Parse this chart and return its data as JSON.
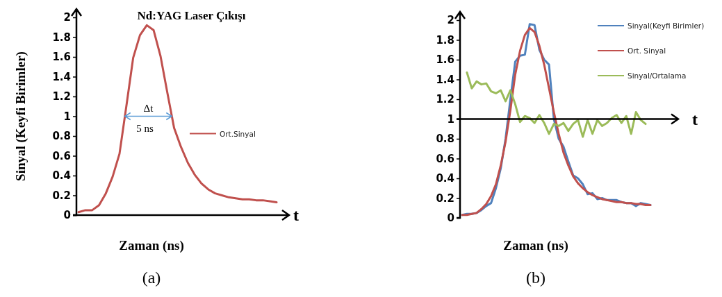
{
  "chart_data": [
    {
      "type": "line",
      "title": "Nd:YAG Laser Çıkışı",
      "subtitle": "(a)",
      "xlabel": "Zaman (ns)",
      "ylabel": "Sinyal (Keyfi Birimler)",
      "categories": [
        null,
        null,
        null,
        null,
        null,
        null,
        null,
        null,
        null,
        null,
        null,
        null,
        null,
        null,
        null,
        null,
        null,
        null,
        null,
        null,
        null,
        null,
        null,
        null,
        null,
        null,
        null,
        null,
        null,
        null
      ],
      "series": [
        {
          "name": "Ort.Sinyal",
          "color": "#c0504d",
          "values": [
            0.03,
            0.05,
            0.05,
            0.1,
            0.22,
            0.39,
            0.62,
            1.1,
            1.59,
            1.82,
            1.92,
            1.87,
            1.61,
            1.24,
            0.88,
            0.69,
            0.53,
            0.41,
            0.32,
            0.26,
            0.22,
            0.2,
            0.18,
            0.17,
            0.16,
            0.16,
            0.15,
            0.15,
            0.14,
            0.13
          ]
        }
      ],
      "ylim": [
        0,
        2
      ],
      "yticks": [
        0,
        0.2,
        0.4,
        0.6,
        0.8,
        1,
        1.2,
        1.4,
        1.6,
        1.8,
        2
      ],
      "legend": "right",
      "annotations": [
        "Δt",
        "5 ns",
        "t"
      ]
    },
    {
      "type": "line",
      "subtitle": "(b)",
      "xlabel": "Zaman (ns)",
      "categories": [
        null,
        null,
        null,
        null,
        null,
        null,
        null,
        null,
        null,
        null,
        null,
        null,
        null,
        null,
        null,
        null,
        null,
        null,
        null,
        null,
        null,
        null,
        null,
        null,
        null,
        null,
        null,
        null,
        null,
        null,
        null,
        null,
        null,
        null,
        null,
        null,
        null,
        null,
        null,
        null
      ],
      "series": [
        {
          "name": "Sinyal(Keyfi Birimler)",
          "color": "#4f81bd",
          "values": [
            0.03,
            0.04,
            0.04,
            0.05,
            0.08,
            0.12,
            0.15,
            0.3,
            0.5,
            0.8,
            1.2,
            1.58,
            1.64,
            1.65,
            1.96,
            1.95,
            1.7,
            1.6,
            1.55,
            1.0,
            0.8,
            0.72,
            0.57,
            0.43,
            0.4,
            0.34,
            0.24,
            0.25,
            0.19,
            0.2,
            0.18,
            0.18,
            0.18,
            0.16,
            0.15,
            0.15,
            0.12,
            0.15,
            0.14,
            0.13
          ]
        },
        {
          "name": "Ort. Sinyal",
          "color": "#c0504d",
          "values": [
            0.03,
            0.03,
            0.04,
            0.05,
            0.09,
            0.14,
            0.22,
            0.34,
            0.53,
            0.77,
            1.09,
            1.45,
            1.69,
            1.85,
            1.92,
            1.88,
            1.74,
            1.55,
            1.31,
            1.07,
            0.85,
            0.66,
            0.53,
            0.42,
            0.35,
            0.3,
            0.26,
            0.23,
            0.21,
            0.19,
            0.18,
            0.17,
            0.16,
            0.16,
            0.15,
            0.15,
            0.14,
            0.14,
            0.13,
            0.13
          ]
        },
        {
          "name": "Sinyal/Ortalama",
          "color": "#9bbb59",
          "values": [
            null,
            1.47,
            1.31,
            1.38,
            1.35,
            1.36,
            1.28,
            1.26,
            1.29,
            1.18,
            1.29,
            1.15,
            0.97,
            1.03,
            1.01,
            0.96,
            1.04,
            0.96,
            0.85,
            0.95,
            0.93,
            0.96,
            0.88,
            0.95,
            0.99,
            0.82,
            0.99,
            0.85,
            0.99,
            0.93,
            0.96,
            1.01,
            1.04,
            0.96,
            1.03,
            0.85,
            1.07,
            0.99,
            0.95,
            null
          ]
        }
      ],
      "ylim": [
        0,
        2
      ],
      "yticks": [
        0,
        0.2,
        0.4,
        0.6,
        0.8,
        1,
        1.2,
        1.4,
        1.6,
        1.8,
        2
      ],
      "legend": "top right",
      "ref_lines": [
        {
          "axis": "y",
          "value": 1,
          "label": "t"
        }
      ]
    }
  ]
}
